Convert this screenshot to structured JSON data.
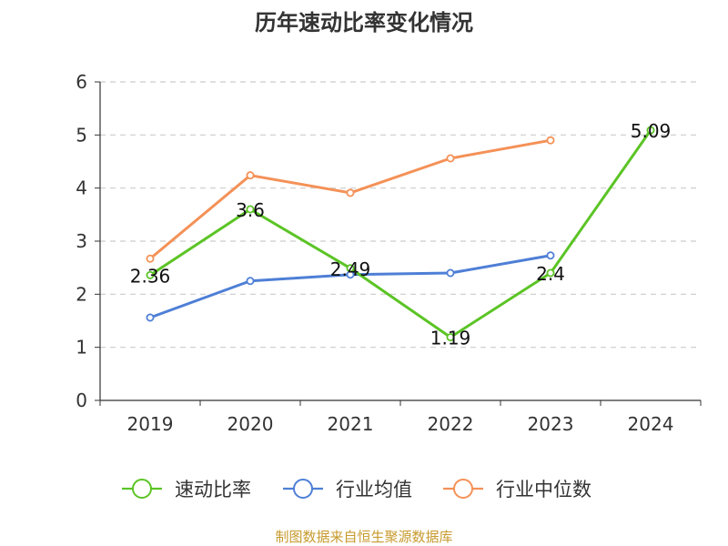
{
  "chart_data": {
    "type": "line",
    "title": "历年速动比率变化情况",
    "categories": [
      "2019",
      "2020",
      "2021",
      "2022",
      "2023",
      "2024"
    ],
    "ylim": [
      0,
      6
    ],
    "yticks": [
      0,
      1,
      2,
      3,
      4,
      5,
      6
    ],
    "grid": true,
    "legend_position": "bottom",
    "series": [
      {
        "name": "速动比率",
        "color": "#5bc425",
        "values": [
          2.36,
          3.6,
          2.49,
          1.19,
          2.4,
          5.09
        ],
        "labels": [
          "2.36",
          "3.6",
          "2.49",
          "1.19",
          "2.4",
          "5.09"
        ]
      },
      {
        "name": "行业均值",
        "color": "#4e7fd6",
        "values": [
          1.56,
          2.25,
          2.37,
          2.4,
          2.73,
          null
        ]
      },
      {
        "name": "行业中位数",
        "color": "#f49157",
        "values": [
          2.67,
          4.24,
          3.91,
          4.56,
          4.9,
          null
        ]
      }
    ],
    "source": "制图数据来自恒生聚源数据库"
  }
}
